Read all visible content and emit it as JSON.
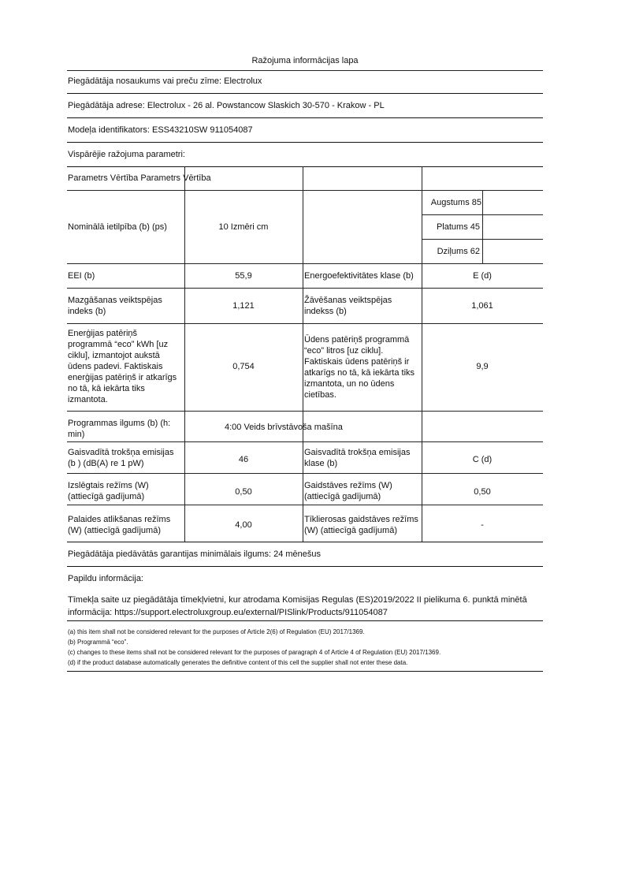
{
  "title": "Ražojuma informācijas lapa",
  "supplier_name": "Piegādātāja nosaukums vai preču zīme: Electrolux",
  "supplier_address": "Piegādātāja adrese: Electrolux - 26 al. Powstancow Slaskich 30-570 - Krakow - PL",
  "model": "Modeļa identifikators: ESS43210SW 911054087",
  "general_params": "Vispārējie ražojuma parametri:",
  "table": {
    "header": "Parametrs Vērtība Parametrs Vērtība",
    "capacity_label": "Nominālā ietilpība (b) (ps)",
    "capacity_value": "10 Izmēri cm",
    "dims": [
      "Augstums 85",
      "Platums 45",
      "Dziļums 62"
    ],
    "rows": [
      {
        "l1": "EEI (b)",
        "v1": "55,9",
        "l2": "Energoefektivitātes klase (b)",
        "v2": "E (d)"
      },
      {
        "l1": "Mazgāšanas veiktspējas indeks (b)",
        "v1": "1,121",
        "l2": "Žāvēšanas veiktspējas indekss (b)",
        "v2": "1,061"
      },
      {
        "l1": "Enerģijas patēriņš programmā “eco” kWh [uz ciklu], izmantojot aukstā ūdens padevi. Faktiskais enerģijas patēriņš ir atkarīgs no tā, kā iekārta tiks izmantota.",
        "v1": "0,754",
        "l2": "Ūdens patēriņš programmā “eco” litros [uz ciklu]. Faktiskais ūdens patēriņš ir atkarīgs no tā, kā iekārta tiks izmantota, un no ūdens cietības.",
        "v2": "9,9"
      },
      {
        "l1": "Programmas ilgums (b) (h: min)",
        "v1": "4:00 Veids brīvstāvoša mašīna"
      },
      {
        "l1": "Gaisvadītā trokšņa emisijas (b ) (dB(A) re 1 pW)",
        "v1": "46",
        "l2": "Gaisvadītā trokšņa emisijas klase (b)",
        "v2": "C (d)"
      },
      {
        "l1": "Izslēgtais režīms (W) (attiecīgā gadījumā)",
        "v1": "0,50",
        "l2": "Gaidstāves režīms (W) (attiecīgā gadījumā)",
        "v2": "0,50"
      },
      {
        "l1": "Palaides atlikšanas režīms (W) (attiecīgā gadījumā)",
        "v1": "4,00",
        "l2": "Tīklierosas gaidstāves režīms (W) (attiecīgā gadījumā)",
        "v2": "-"
      }
    ]
  },
  "warranty": "Piegādātāja piedāvātās garantijas minimālais ilgums: 24 mēnešus",
  "additional": "Papildu informācija:",
  "weblink": "Tīmekļa saite uz piegādātāja tīmekļvietni, kur atrodama Komisijas Regulas (ES)2019/2022 II pielikuma 6. punktā minētā informācija: https://support.electroluxgroup.eu/external/PISlink/Products/911054087",
  "footnotes": [
    "(a) this item shall not be considered relevant for the purposes of Article 2(6) of Regulation (EU) 2017/1369.",
    "(b) Programmā “eco”.",
    "(c) changes to these items shall not be considered relevant for the purposes of paragraph 4 of Article 4 of Regulation (EU) 2017/1369.",
    "(d) if the product database automatically generates the definitive content of this cell the supplier shall not enter these data."
  ]
}
